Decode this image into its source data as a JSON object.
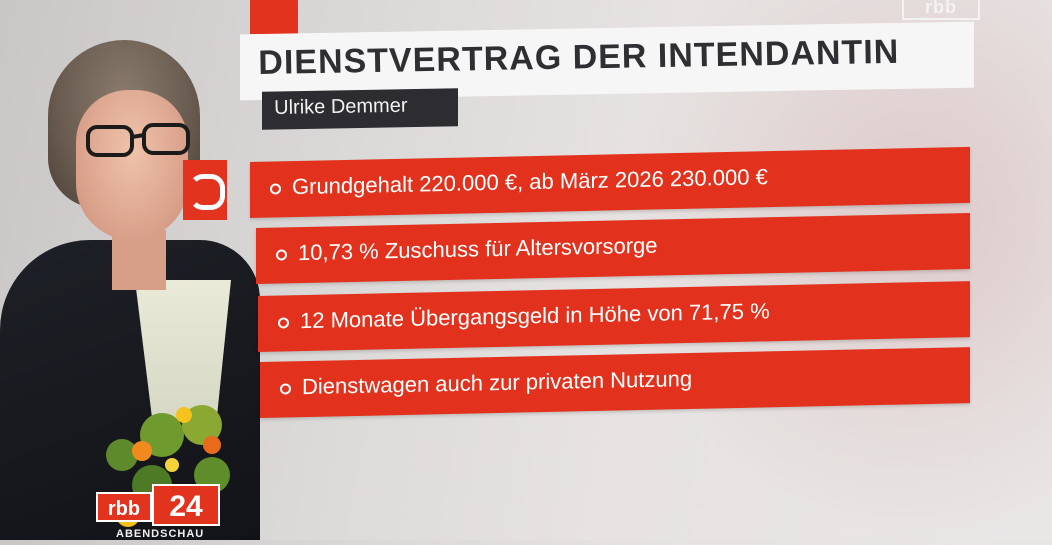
{
  "title": "DIENSTVERTRAG DER INTENDANTIN",
  "person_name": "Ulrike Demmer",
  "facts": [
    "Grundgehalt 220.000 €, ab März 2026 230.000 €",
    "10,73 % Zuschuss für Altersvorsorge",
    "12 Monate Übergangsgeld in Höhe von 71,75 %",
    "Dienstwagen auch zur privaten Nutzung"
  ],
  "channel_logo": {
    "brand": "rbb",
    "number": "24",
    "program": "ABENDSCHAU"
  },
  "ghost_logo": "rbb",
  "colors": {
    "accent_red": "#e2321d",
    "title_text": "#2f2f33",
    "name_tag_bg": "#2d2d31"
  },
  "icons": [
    "bullet-ring-icon"
  ]
}
